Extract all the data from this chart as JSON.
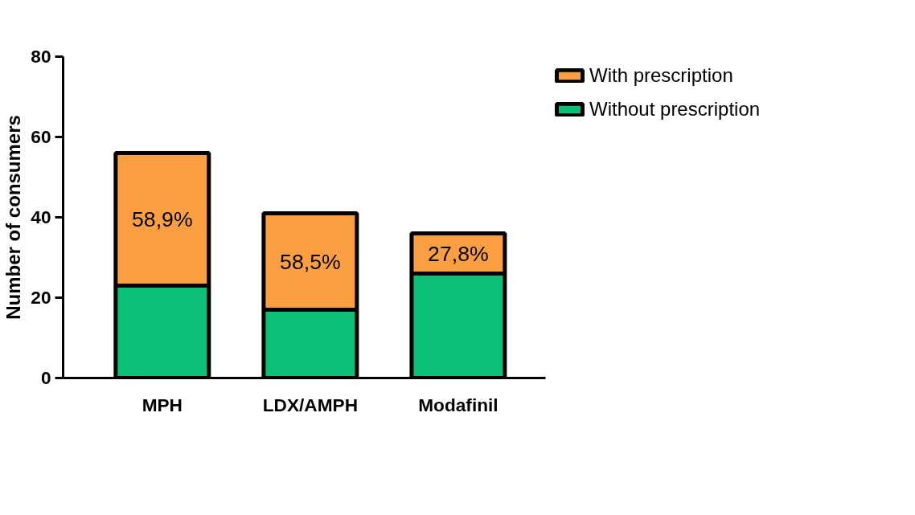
{
  "chart_data": {
    "type": "bar",
    "stacked": true,
    "ylabel": "Number of consumers",
    "categories": [
      "MPH",
      "LDX/AMPH",
      "Modafinil"
    ],
    "series": [
      {
        "name": "Without prescription",
        "color": "#0abf77",
        "values": [
          23,
          17,
          26
        ]
      },
      {
        "name": "With prescription",
        "color": "#fb9f42",
        "values": [
          33,
          24,
          10
        ]
      }
    ],
    "annotations": [
      "58,9%",
      "58,5%",
      "27,8%"
    ],
    "ylim": [
      0,
      80
    ],
    "yticks": [
      0,
      20,
      40,
      60,
      80
    ],
    "grid": false,
    "legend": "top right"
  }
}
